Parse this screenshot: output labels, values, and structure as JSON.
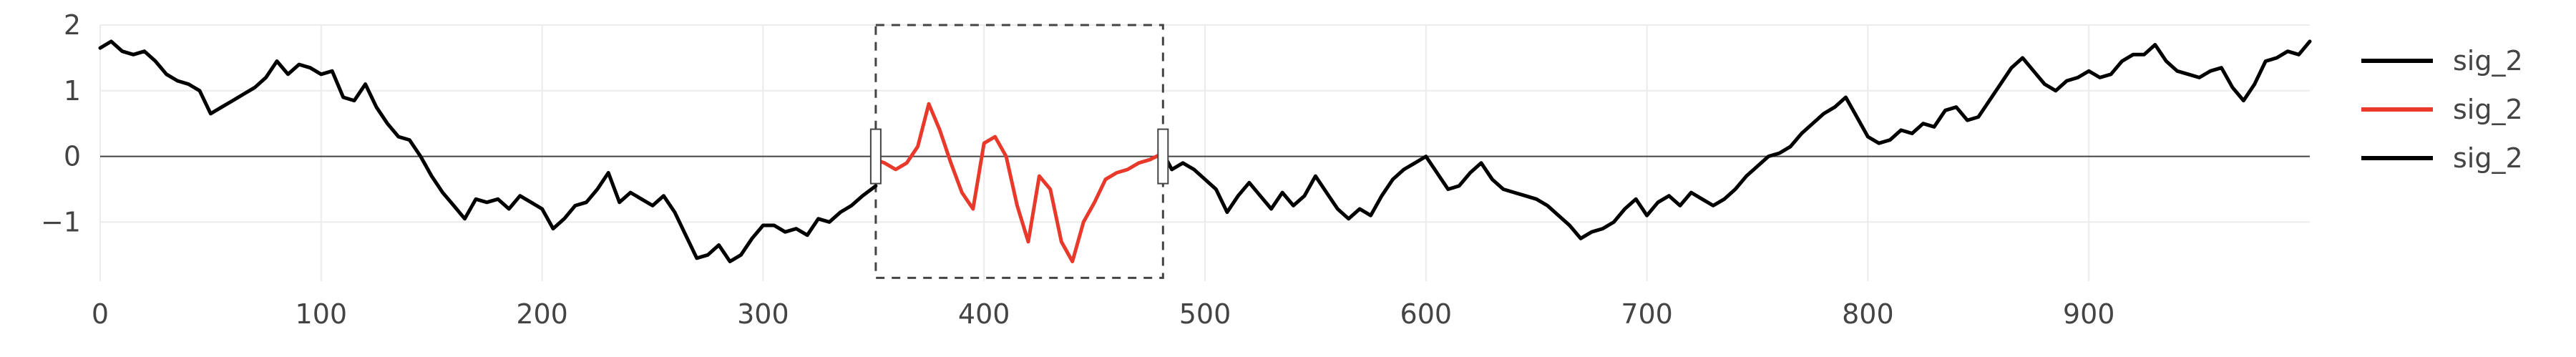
{
  "chart_data": {
    "type": "line",
    "title": "",
    "xlabel": "",
    "ylabel": "",
    "xlim": [
      0,
      1000
    ],
    "ylim": [
      -1.9,
      2.0
    ],
    "x_ticks": [
      0,
      100,
      200,
      300,
      400,
      500,
      600,
      700,
      800,
      900
    ],
    "x_tick_labels": [
      "0",
      "100",
      "200",
      "300",
      "400",
      "500",
      "600",
      "700",
      "800",
      "900"
    ],
    "y_ticks": [
      2,
      1,
      0,
      -1
    ],
    "y_tick_labels": [
      "2",
      "1",
      "0",
      "−1"
    ],
    "grid": true,
    "zero_line": true,
    "legend_position": "right",
    "selection_box": {
      "x": [
        351,
        481
      ],
      "y": [
        -1.85,
        2.0
      ],
      "style": "dashed"
    },
    "series": [
      {
        "name": "sig_2",
        "color": "#000000",
        "x": [
          0,
          5,
          10,
          15,
          20,
          25,
          30,
          35,
          40,
          45,
          50,
          55,
          60,
          65,
          70,
          75,
          80,
          85,
          90,
          95,
          100,
          105,
          110,
          115,
          120,
          125,
          130,
          135,
          140,
          145,
          150,
          155,
          160,
          165,
          170,
          175,
          180,
          185,
          190,
          195,
          200,
          205,
          210,
          215,
          220,
          225,
          230,
          235,
          240,
          245,
          250,
          255,
          260,
          265,
          270,
          275,
          280,
          285,
          290,
          295,
          300,
          305,
          310,
          315,
          320,
          325,
          330,
          335,
          340,
          345,
          351
        ],
        "values": [
          1.65,
          1.75,
          1.6,
          1.55,
          1.6,
          1.45,
          1.25,
          1.15,
          1.1,
          1.0,
          0.65,
          0.75,
          0.85,
          0.95,
          1.05,
          1.2,
          1.45,
          1.25,
          1.4,
          1.35,
          1.25,
          1.3,
          0.9,
          0.85,
          1.1,
          0.75,
          0.5,
          0.3,
          0.25,
          0.0,
          -0.3,
          -0.55,
          -0.75,
          -0.95,
          -0.65,
          -0.7,
          -0.65,
          -0.8,
          -0.6,
          -0.7,
          -0.8,
          -1.1,
          -0.95,
          -0.75,
          -0.7,
          -0.5,
          -0.25,
          -0.7,
          -0.55,
          -0.65,
          -0.75,
          -0.6,
          -0.85,
          -1.2,
          -1.55,
          -1.5,
          -1.35,
          -1.6,
          -1.5,
          -1.25,
          -1.05,
          -1.05,
          -1.15,
          -1.1,
          -1.2,
          -0.95,
          -1.0,
          -0.85,
          -0.75,
          -0.6,
          -0.45
        ]
      },
      {
        "name": "sig_2",
        "color": "#e8392b",
        "x": [
          351,
          355,
          360,
          365,
          370,
          375,
          380,
          385,
          390,
          395,
          400,
          405,
          410,
          415,
          420,
          425,
          430,
          435,
          440,
          445,
          450,
          455,
          460,
          465,
          470,
          475,
          481
        ],
        "values": [
          -0.05,
          -0.1,
          -0.2,
          -0.1,
          0.15,
          0.8,
          0.4,
          -0.1,
          -0.55,
          -0.8,
          0.2,
          0.3,
          0.0,
          -0.75,
          -1.3,
          -0.3,
          -0.5,
          -1.3,
          -1.6,
          -1.0,
          -0.7,
          -0.35,
          -0.25,
          -0.2,
          -0.1,
          -0.05,
          0.05
        ]
      },
      {
        "name": "sig_2",
        "color": "#000000",
        "x": [
          481,
          485,
          490,
          495,
          500,
          505,
          510,
          515,
          520,
          525,
          530,
          535,
          540,
          545,
          550,
          555,
          560,
          565,
          570,
          575,
          580,
          585,
          590,
          595,
          600,
          605,
          610,
          615,
          620,
          625,
          630,
          635,
          640,
          645,
          650,
          655,
          660,
          665,
          670,
          675,
          680,
          685,
          690,
          695,
          700,
          705,
          710,
          715,
          720,
          725,
          730,
          735,
          740,
          745,
          750,
          755,
          760,
          765,
          770,
          775,
          780,
          785,
          790,
          795,
          800,
          805,
          810,
          815,
          820,
          825,
          830,
          835,
          840,
          845,
          850,
          855,
          860,
          865,
          870,
          875,
          880,
          885,
          890,
          895,
          900,
          905,
          910,
          915,
          920,
          925,
          930,
          935,
          940,
          945,
          950,
          955,
          960,
          965,
          970,
          975,
          980,
          985,
          990,
          995,
          1000
        ],
        "values": [
          0.05,
          -0.2,
          -0.1,
          -0.2,
          -0.35,
          -0.5,
          -0.85,
          -0.6,
          -0.4,
          -0.6,
          -0.8,
          -0.55,
          -0.75,
          -0.6,
          -0.3,
          -0.55,
          -0.8,
          -0.95,
          -0.8,
          -0.9,
          -0.6,
          -0.35,
          -0.2,
          -0.1,
          0.0,
          -0.25,
          -0.5,
          -0.45,
          -0.25,
          -0.1,
          -0.35,
          -0.5,
          -0.55,
          -0.6,
          -0.65,
          -0.75,
          -0.9,
          -1.05,
          -1.25,
          -1.15,
          -1.1,
          -1.0,
          -0.8,
          -0.65,
          -0.9,
          -0.7,
          -0.6,
          -0.75,
          -0.55,
          -0.65,
          -0.75,
          -0.65,
          -0.5,
          -0.3,
          -0.15,
          0.0,
          0.05,
          0.15,
          0.35,
          0.5,
          0.65,
          0.75,
          0.9,
          0.6,
          0.3,
          0.2,
          0.25,
          0.4,
          0.35,
          0.5,
          0.45,
          0.7,
          0.75,
          0.55,
          0.6,
          0.85,
          1.1,
          1.35,
          1.5,
          1.3,
          1.1,
          1.0,
          1.15,
          1.2,
          1.3,
          1.2,
          1.25,
          1.45,
          1.55,
          1.55,
          1.7,
          1.45,
          1.3,
          1.25,
          1.2,
          1.3,
          1.35,
          1.05,
          0.85,
          1.1,
          1.45,
          1.5,
          1.6,
          1.55,
          1.75
        ]
      }
    ]
  }
}
